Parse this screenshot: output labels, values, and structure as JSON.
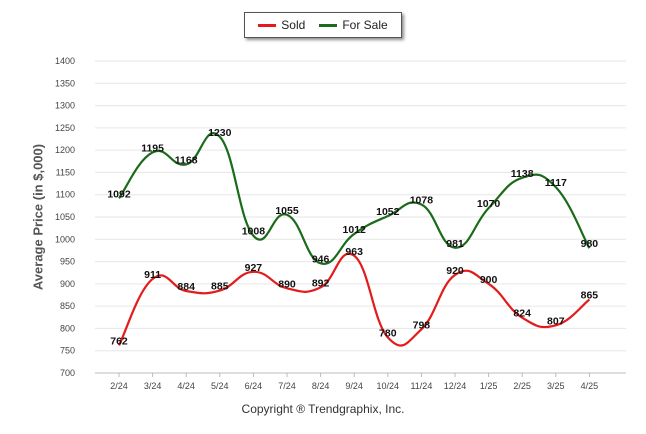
{
  "legend": {
    "sold": "Sold",
    "for_sale": "For Sale"
  },
  "colors": {
    "sold": "#e31b1b",
    "for_sale": "#1a6b1a",
    "grid": "#e6e6e6",
    "axis": "#bbbbbb"
  },
  "footer": {
    "copyright": "Copyright ® Trendgraphix, Inc."
  },
  "chart_data": {
    "type": "line",
    "title": "",
    "xlabel": "",
    "ylabel": "Average Price (in $,000)",
    "ylim": [
      700,
      1400
    ],
    "ytick_step": 50,
    "grid": true,
    "legend_position": "top-center",
    "categories": [
      "2/24",
      "3/24",
      "4/24",
      "5/24",
      "6/24",
      "7/24",
      "8/24",
      "9/24",
      "10/24",
      "11/24",
      "12/24",
      "1/25",
      "2/25",
      "3/25",
      "4/25"
    ],
    "series": [
      {
        "name": "Sold",
        "values": [
          762,
          911,
          884,
          885,
          927,
          890,
          892,
          963,
          780,
          798,
          920,
          900,
          824,
          807,
          865
        ]
      },
      {
        "name": "For Sale",
        "values": [
          1092,
          1195,
          1168,
          1230,
          1008,
          1055,
          946,
          1012,
          1052,
          1078,
          981,
          1070,
          1138,
          1117,
          980
        ]
      }
    ]
  }
}
